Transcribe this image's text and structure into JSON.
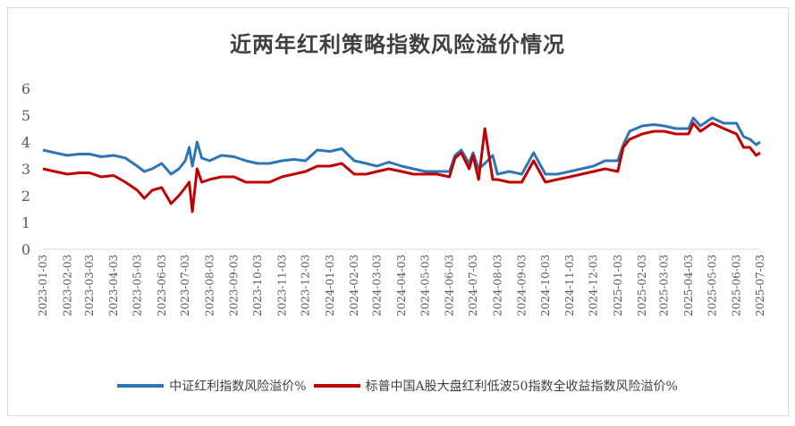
{
  "chart_data": {
    "type": "line",
    "title": "近两年红利策略指数风险溢价情况",
    "xlabel": "",
    "ylabel": "",
    "ylim": [
      0,
      6
    ],
    "yticks": [
      "0",
      "1",
      "2",
      "3",
      "4",
      "5",
      "6"
    ],
    "grid": false,
    "legend_position": "bottom",
    "x_tick_labels": [
      "2023-01-03",
      "2023-02-03",
      "2023-03-03",
      "2023-04-03",
      "2023-05-03",
      "2023-06-03",
      "2023-07-03",
      "2023-08-03",
      "2023-09-03",
      "2023-10-03",
      "2023-11-03",
      "2023-12-03",
      "2024-01-03",
      "2024-02-03",
      "2024-03-03",
      "2024-04-03",
      "2024-05-03",
      "2024-06-03",
      "2024-07-03",
      "2024-08-03",
      "2024-09-03",
      "2024-10-03",
      "2024-11-03",
      "2024-12-03",
      "2025-01-03",
      "2025-02-03",
      "2025-03-03",
      "2025-04-03",
      "2025-05-03",
      "2025-06-03",
      "2025-07-03"
    ],
    "series": [
      {
        "name": "中证红利指数风险溢价%",
        "color": "#2E75B6",
        "points": [
          [
            "2023-01-03",
            3.7
          ],
          [
            "2023-01-18",
            3.6
          ],
          [
            "2023-02-03",
            3.5
          ],
          [
            "2023-02-18",
            3.55
          ],
          [
            "2023-03-03",
            3.55
          ],
          [
            "2023-03-18",
            3.45
          ],
          [
            "2023-04-03",
            3.5
          ],
          [
            "2023-04-18",
            3.4
          ],
          [
            "2023-05-03",
            3.1
          ],
          [
            "2023-05-12",
            2.9
          ],
          [
            "2023-05-22",
            3.0
          ],
          [
            "2023-06-03",
            3.2
          ],
          [
            "2023-06-15",
            2.8
          ],
          [
            "2023-06-25",
            3.0
          ],
          [
            "2023-07-03",
            3.3
          ],
          [
            "2023-07-08",
            3.8
          ],
          [
            "2023-07-12",
            3.1
          ],
          [
            "2023-07-18",
            4.0
          ],
          [
            "2023-07-24",
            3.4
          ],
          [
            "2023-08-03",
            3.3
          ],
          [
            "2023-08-18",
            3.5
          ],
          [
            "2023-09-03",
            3.45
          ],
          [
            "2023-09-18",
            3.3
          ],
          [
            "2023-10-03",
            3.2
          ],
          [
            "2023-10-18",
            3.2
          ],
          [
            "2023-11-03",
            3.3
          ],
          [
            "2023-11-18",
            3.35
          ],
          [
            "2023-12-03",
            3.3
          ],
          [
            "2023-12-18",
            3.7
          ],
          [
            "2024-01-03",
            3.65
          ],
          [
            "2024-01-18",
            3.75
          ],
          [
            "2024-02-03",
            3.3
          ],
          [
            "2024-02-18",
            3.2
          ],
          [
            "2024-03-03",
            3.1
          ],
          [
            "2024-03-18",
            3.25
          ],
          [
            "2024-04-03",
            3.1
          ],
          [
            "2024-04-18",
            3.0
          ],
          [
            "2024-05-03",
            2.9
          ],
          [
            "2024-05-18",
            2.9
          ],
          [
            "2024-06-03",
            2.9
          ],
          [
            "2024-06-10",
            3.5
          ],
          [
            "2024-06-18",
            3.7
          ],
          [
            "2024-06-28",
            3.2
          ],
          [
            "2024-07-03",
            3.6
          ],
          [
            "2024-07-10",
            3.0
          ],
          [
            "2024-07-18",
            3.2
          ],
          [
            "2024-07-28",
            3.5
          ],
          [
            "2024-08-03",
            2.8
          ],
          [
            "2024-08-18",
            2.9
          ],
          [
            "2024-09-03",
            2.8
          ],
          [
            "2024-09-18",
            3.6
          ],
          [
            "2024-10-03",
            2.8
          ],
          [
            "2024-10-18",
            2.8
          ],
          [
            "2024-11-03",
            2.9
          ],
          [
            "2024-11-18",
            3.0
          ],
          [
            "2024-12-03",
            3.1
          ],
          [
            "2024-12-18",
            3.3
          ],
          [
            "2025-01-03",
            3.3
          ],
          [
            "2025-01-10",
            3.9
          ],
          [
            "2025-01-18",
            4.4
          ],
          [
            "2025-02-03",
            4.6
          ],
          [
            "2025-02-18",
            4.65
          ],
          [
            "2025-03-03",
            4.6
          ],
          [
            "2025-03-18",
            4.5
          ],
          [
            "2025-04-03",
            4.5
          ],
          [
            "2025-04-09",
            4.9
          ],
          [
            "2025-04-18",
            4.6
          ],
          [
            "2025-05-03",
            4.9
          ],
          [
            "2025-05-18",
            4.7
          ],
          [
            "2025-06-03",
            4.7
          ],
          [
            "2025-06-12",
            4.2
          ],
          [
            "2025-06-20",
            4.1
          ],
          [
            "2025-06-28",
            3.9
          ],
          [
            "2025-07-03",
            4.0
          ]
        ]
      },
      {
        "name": "标普中国A股大盘红利低波50指数全收益指数风险溢价%",
        "color": "#C00000",
        "points": [
          [
            "2023-01-03",
            3.0
          ],
          [
            "2023-01-18",
            2.9
          ],
          [
            "2023-02-03",
            2.8
          ],
          [
            "2023-02-18",
            2.85
          ],
          [
            "2023-03-03",
            2.85
          ],
          [
            "2023-03-18",
            2.7
          ],
          [
            "2023-04-03",
            2.75
          ],
          [
            "2023-04-18",
            2.5
          ],
          [
            "2023-05-03",
            2.2
          ],
          [
            "2023-05-12",
            1.9
          ],
          [
            "2023-05-22",
            2.2
          ],
          [
            "2023-06-03",
            2.3
          ],
          [
            "2023-06-15",
            1.7
          ],
          [
            "2023-06-25",
            2.0
          ],
          [
            "2023-07-03",
            2.3
          ],
          [
            "2023-07-08",
            2.5
          ],
          [
            "2023-07-12",
            1.4
          ],
          [
            "2023-07-18",
            3.0
          ],
          [
            "2023-07-24",
            2.5
          ],
          [
            "2023-08-03",
            2.6
          ],
          [
            "2023-08-18",
            2.7
          ],
          [
            "2023-09-03",
            2.7
          ],
          [
            "2023-09-18",
            2.5
          ],
          [
            "2023-10-03",
            2.5
          ],
          [
            "2023-10-18",
            2.5
          ],
          [
            "2023-11-03",
            2.7
          ],
          [
            "2023-11-18",
            2.8
          ],
          [
            "2023-12-03",
            2.9
          ],
          [
            "2023-12-18",
            3.1
          ],
          [
            "2024-01-03",
            3.1
          ],
          [
            "2024-01-18",
            3.2
          ],
          [
            "2024-02-03",
            2.8
          ],
          [
            "2024-02-18",
            2.8
          ],
          [
            "2024-03-03",
            2.9
          ],
          [
            "2024-03-18",
            3.0
          ],
          [
            "2024-04-03",
            2.9
          ],
          [
            "2024-04-18",
            2.8
          ],
          [
            "2024-05-03",
            2.8
          ],
          [
            "2024-05-18",
            2.8
          ],
          [
            "2024-06-03",
            2.7
          ],
          [
            "2024-06-10",
            3.4
          ],
          [
            "2024-06-18",
            3.6
          ],
          [
            "2024-06-28",
            3.0
          ],
          [
            "2024-07-03",
            3.5
          ],
          [
            "2024-07-10",
            2.6
          ],
          [
            "2024-07-18",
            4.5
          ],
          [
            "2024-07-28",
            2.6
          ],
          [
            "2024-08-03",
            2.6
          ],
          [
            "2024-08-18",
            2.5
          ],
          [
            "2024-09-03",
            2.5
          ],
          [
            "2024-09-18",
            3.3
          ],
          [
            "2024-10-03",
            2.5
          ],
          [
            "2024-10-18",
            2.6
          ],
          [
            "2024-11-03",
            2.7
          ],
          [
            "2024-11-18",
            2.8
          ],
          [
            "2024-12-03",
            2.9
          ],
          [
            "2024-12-18",
            3.0
          ],
          [
            "2025-01-03",
            2.9
          ],
          [
            "2025-01-10",
            3.8
          ],
          [
            "2025-01-18",
            4.1
          ],
          [
            "2025-02-03",
            4.3
          ],
          [
            "2025-02-18",
            4.4
          ],
          [
            "2025-03-03",
            4.4
          ],
          [
            "2025-03-18",
            4.3
          ],
          [
            "2025-04-03",
            4.3
          ],
          [
            "2025-04-09",
            4.7
          ],
          [
            "2025-04-18",
            4.4
          ],
          [
            "2025-05-03",
            4.7
          ],
          [
            "2025-05-18",
            4.5
          ],
          [
            "2025-06-03",
            4.3
          ],
          [
            "2025-06-12",
            3.8
          ],
          [
            "2025-06-20",
            3.8
          ],
          [
            "2025-06-28",
            3.5
          ],
          [
            "2025-07-03",
            3.6
          ]
        ]
      }
    ]
  }
}
